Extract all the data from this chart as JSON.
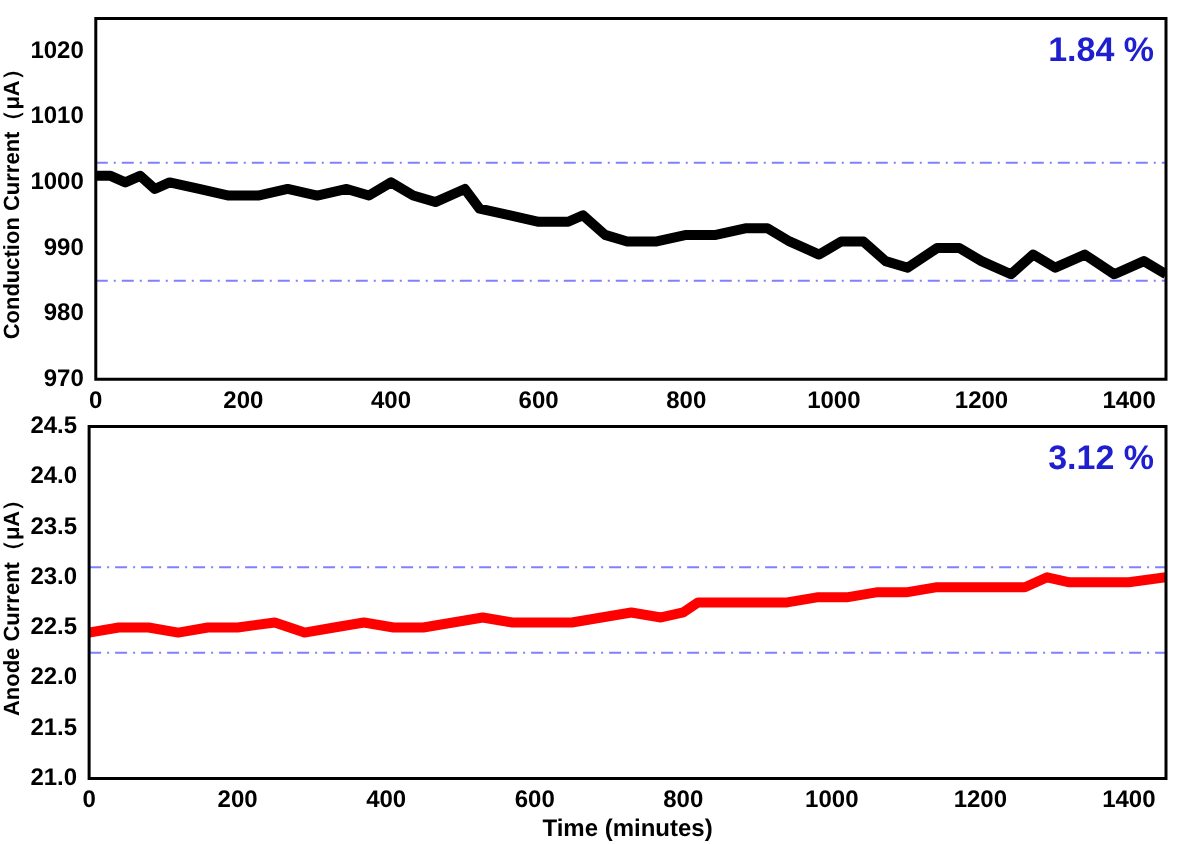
{
  "chart_data": [
    {
      "type": "line",
      "ylabel": "Conduction Current（μA）",
      "annotations": [
        "1.84 %"
      ],
      "xlim": [
        0,
        1450
      ],
      "xticks": [
        0,
        200,
        400,
        600,
        800,
        1000,
        1200,
        1400
      ],
      "ylim": [
        970,
        1025
      ],
      "yticks": [
        970,
        980,
        990,
        1000,
        1010,
        1020
      ],
      "grid": false,
      "legend": false,
      "ref_lines": [
        {
          "axis": "y",
          "value": 1003,
          "color": "#8080ff",
          "line_style": "dashed"
        },
        {
          "axis": "y",
          "value": 985,
          "color": "#8080ff",
          "line_style": "dashed"
        }
      ],
      "series": [
        {
          "color": "#000000",
          "x": [
            0,
            20,
            40,
            60,
            80,
            100,
            140,
            180,
            220,
            260,
            300,
            340,
            370,
            400,
            430,
            460,
            500,
            520,
            560,
            600,
            640,
            660,
            690,
            720,
            760,
            800,
            840,
            880,
            910,
            940,
            980,
            1010,
            1040,
            1070,
            1100,
            1140,
            1170,
            1200,
            1240,
            1270,
            1300,
            1340,
            1380,
            1420,
            1450
          ],
          "values": [
            1001,
            1001,
            1000,
            1001,
            999,
            1000,
            999,
            998,
            998,
            999,
            998,
            999,
            998,
            1000,
            998,
            997,
            999,
            996,
            995,
            994,
            994,
            995,
            992,
            991,
            991,
            992,
            992,
            993,
            993,
            991,
            989,
            991,
            991,
            988,
            987,
            990,
            990,
            988,
            986,
            989,
            987,
            989,
            986,
            988,
            986
          ]
        }
      ]
    },
    {
      "type": "line",
      "xlabel": "Time (minutes)",
      "ylabel": "Anode Current（μA）",
      "annotations": [
        "3.12 %"
      ],
      "xlim": [
        0,
        1450
      ],
      "xticks": [
        0,
        200,
        400,
        600,
        800,
        1000,
        1200,
        1400
      ],
      "ylim": [
        21.0,
        24.5
      ],
      "yticks": [
        {
          "value": 21,
          "label": "21.0"
        },
        21.5,
        {
          "value": 22,
          "label": "22.0"
        },
        22.5,
        {
          "value": 23,
          "label": "23.0"
        },
        23.5,
        {
          "value": 24,
          "label": "24.0"
        },
        24.5
      ],
      "grid": false,
      "legend": false,
      "ref_lines": [
        {
          "axis": "y",
          "value": 23.1,
          "color": "#8080ff",
          "line_style": "dashed"
        },
        {
          "axis": "y",
          "value": 22.25,
          "color": "#8080ff",
          "line_style": "dashed"
        }
      ],
      "series": [
        {
          "color": "#ff0000",
          "x": [
            0,
            40,
            80,
            120,
            160,
            200,
            250,
            290,
            330,
            370,
            410,
            450,
            490,
            530,
            570,
            610,
            650,
            690,
            730,
            770,
            800,
            820,
            860,
            900,
            940,
            980,
            1020,
            1060,
            1100,
            1140,
            1180,
            1220,
            1260,
            1290,
            1320,
            1360,
            1400,
            1450
          ],
          "values": [
            22.45,
            22.5,
            22.5,
            22.45,
            22.5,
            22.5,
            22.55,
            22.45,
            22.5,
            22.55,
            22.5,
            22.5,
            22.55,
            22.6,
            22.55,
            22.55,
            22.55,
            22.6,
            22.65,
            22.6,
            22.65,
            22.75,
            22.75,
            22.75,
            22.75,
            22.8,
            22.8,
            22.85,
            22.85,
            22.9,
            22.9,
            22.9,
            22.9,
            23.0,
            22.95,
            22.95,
            22.95,
            23.0
          ]
        }
      ]
    }
  ]
}
